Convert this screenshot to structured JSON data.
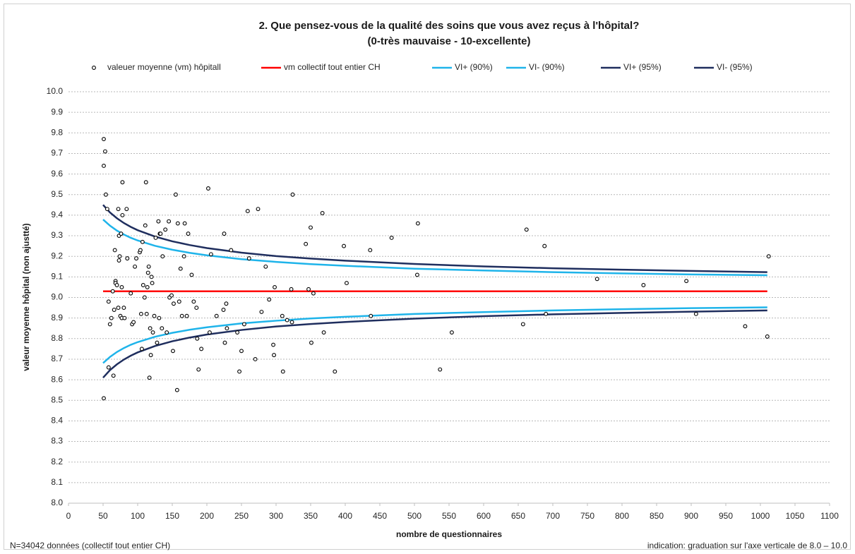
{
  "chart_data": {
    "type": "scatter",
    "title": "2. Que pensez-vous de la qualité des soins que vous avez reçus à l'hôpital?",
    "subtitle": "(0-très mauvaise - 10-excellente)",
    "x_label": "nombre de questionnaires",
    "y_label": "valeur moyenne hôpital (non ajustté)",
    "note_left": "N=34042 données (collectif tout entier CH)",
    "note_right": "indication: graduation sur l'axe verticale de 8.0 – 10.0",
    "xlim": [
      0,
      1100
    ],
    "ylim": [
      8.0,
      10.0
    ],
    "xticks": [
      0,
      50,
      100,
      150,
      200,
      250,
      300,
      350,
      400,
      450,
      500,
      550,
      600,
      650,
      700,
      750,
      800,
      850,
      900,
      950,
      1000,
      1050,
      1100
    ],
    "yticks": [
      {
        "value": 8.0,
        "label": "8.0"
      },
      8.1,
      8.2,
      8.3,
      8.4,
      8.5,
      8.6,
      8.7,
      8.8,
      8.9,
      {
        "value": 9.0,
        "label": "9.0"
      },
      9.1,
      9.2,
      9.3,
      9.4,
      9.5,
      9.6,
      9.7,
      9.8,
      9.9,
      {
        "value": 10.0,
        "label": "10.0"
      }
    ],
    "grid": true,
    "legend": "top",
    "series": [
      {
        "name": "valeuer moyenne (vm) hôpitall",
        "type": "scatter",
        "color": "#000000",
        "x": [
          51,
          53,
          51,
          54,
          51,
          58,
          56,
          60,
          62,
          58,
          65,
          64,
          66,
          67,
          68,
          68,
          70,
          72,
          72,
          73,
          73,
          75,
          76,
          74,
          78,
          78,
          77,
          77,
          80,
          81,
          84,
          85,
          90,
          92,
          94,
          96,
          98,
          103,
          104,
          105,
          106,
          107,
          108,
          110,
          111,
          112,
          113,
          114,
          115,
          116,
          117,
          118,
          119,
          120,
          121,
          122,
          124,
          126,
          128,
          130,
          131,
          132,
          133,
          135,
          136,
          140,
          142,
          145,
          146,
          149,
          151,
          152,
          155,
          157,
          158,
          160,
          162,
          164,
          167,
          168,
          171,
          173,
          178,
          181,
          185,
          186,
          188,
          192,
          202,
          204,
          206,
          214,
          224,
          225,
          226,
          228,
          229,
          235,
          244,
          247,
          250,
          254,
          259,
          261,
          270,
          274,
          279,
          285,
          290,
          296,
          297,
          298,
          309,
          310,
          316,
          322,
          323,
          324,
          343,
          347,
          350,
          351,
          354,
          367,
          369,
          385,
          398,
          402,
          436,
          437,
          467,
          504,
          505,
          537,
          554,
          657,
          662,
          688,
          690,
          764,
          831,
          893,
          907,
          978,
          1010,
          1012
        ],
        "values": [
          9.77,
          9.71,
          9.64,
          9.5,
          8.51,
          8.66,
          9.43,
          8.87,
          8.9,
          8.98,
          8.62,
          9.03,
          8.94,
          9.23,
          9.08,
          9.07,
          9.06,
          8.95,
          9.43,
          9.18,
          9.3,
          8.91,
          9.31,
          9.2,
          9.56,
          9.4,
          8.9,
          9.05,
          8.95,
          8.9,
          9.43,
          9.19,
          9.02,
          8.87,
          8.88,
          9.15,
          9.19,
          9.22,
          9.23,
          8.92,
          8.75,
          9.27,
          9.06,
          9.0,
          9.35,
          9.56,
          8.92,
          9.05,
          9.12,
          9.15,
          8.61,
          8.85,
          8.72,
          9.1,
          9.07,
          8.83,
          8.91,
          9.29,
          8.78,
          9.37,
          8.9,
          9.31,
          9.31,
          8.85,
          9.2,
          9.33,
          8.83,
          9.37,
          9.0,
          9.01,
          8.74,
          8.97,
          9.5,
          8.55,
          9.36,
          8.98,
          9.14,
          8.91,
          9.2,
          9.36,
          8.91,
          9.31,
          9.11,
          8.98,
          8.95,
          8.8,
          8.65,
          8.75,
          9.53,
          8.83,
          9.21,
          8.91,
          8.94,
          9.31,
          8.78,
          8.97,
          8.85,
          9.23,
          8.83,
          8.64,
          8.74,
          8.87,
          9.42,
          9.19,
          8.7,
          9.43,
          8.93,
          9.15,
          8.99,
          8.77,
          8.72,
          9.05,
          8.91,
          8.64,
          8.89,
          9.04,
          8.88,
          9.5,
          9.26,
          9.04,
          9.34,
          8.78,
          9.02,
          9.41,
          8.83,
          8.64,
          9.25,
          9.07,
          9.23,
          8.91,
          9.29,
          9.11,
          9.36,
          8.65,
          8.83,
          8.87,
          9.33,
          9.25,
          8.92,
          9.09,
          9.06,
          9.08,
          8.92,
          8.86,
          8.81,
          9.2
        ]
      },
      {
        "name": "vm collectif tout entier CH",
        "type": "line",
        "color": "#ff0000",
        "x": [
          50,
          1010
        ],
        "values": [
          9.03,
          9.03
        ]
      },
      {
        "name": "VI+ (90%)",
        "type": "line",
        "color": "#1fb4ea",
        "x": [
          50,
          60,
          70,
          80,
          90,
          100,
          125,
          150,
          175,
          200,
          250,
          300,
          350,
          400,
          500,
          600,
          700,
          800,
          900,
          1010
        ],
        "values": [
          9.379,
          9.349,
          9.325,
          9.306,
          9.29,
          9.277,
          9.251,
          9.232,
          9.217,
          9.205,
          9.186,
          9.173,
          9.162,
          9.154,
          9.14,
          9.131,
          9.123,
          9.117,
          9.112,
          9.108
        ]
      },
      {
        "name": "VI- (90%)",
        "type": "line",
        "color": "#1fb4ea",
        "x": [
          50,
          60,
          70,
          80,
          90,
          100,
          125,
          150,
          175,
          200,
          250,
          300,
          350,
          400,
          500,
          600,
          700,
          800,
          900,
          1010
        ],
        "values": [
          8.681,
          8.711,
          8.735,
          8.754,
          8.77,
          8.783,
          8.809,
          8.828,
          8.843,
          8.855,
          8.874,
          8.887,
          8.898,
          8.906,
          8.92,
          8.929,
          8.937,
          8.943,
          8.948,
          8.952
        ]
      },
      {
        "name": "VI+ (95%)",
        "type": "line",
        "color": "#1f2e5e",
        "x": [
          50,
          60,
          70,
          80,
          90,
          100,
          125,
          150,
          175,
          200,
          250,
          300,
          350,
          400,
          500,
          600,
          700,
          800,
          900,
          1010
        ],
        "values": [
          9.45,
          9.413,
          9.385,
          9.362,
          9.343,
          9.327,
          9.296,
          9.273,
          9.255,
          9.24,
          9.218,
          9.201,
          9.189,
          9.179,
          9.163,
          9.151,
          9.142,
          9.135,
          9.129,
          9.123
        ]
      },
      {
        "name": "VI- (95%)",
        "type": "line",
        "color": "#1f2e5e",
        "x": [
          50,
          60,
          70,
          80,
          90,
          100,
          125,
          150,
          175,
          200,
          250,
          300,
          350,
          400,
          500,
          600,
          700,
          800,
          900,
          1010
        ],
        "values": [
          8.61,
          8.647,
          8.675,
          8.698,
          8.717,
          8.733,
          8.764,
          8.787,
          8.805,
          8.82,
          8.842,
          8.859,
          8.871,
          8.881,
          8.897,
          8.909,
          8.918,
          8.925,
          8.931,
          8.937
        ]
      }
    ]
  }
}
